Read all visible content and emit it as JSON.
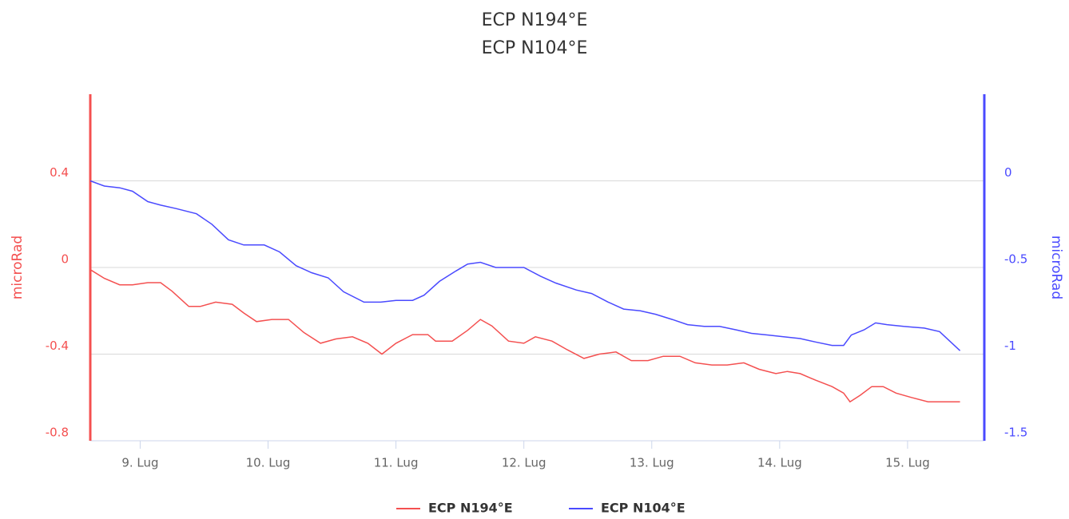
{
  "chart_data": {
    "type": "line",
    "title": "ECP N194°E",
    "subtitle": "ECP N104°E",
    "ylabel": "microRad",
    "y2label": "microRad",
    "xlim": [
      8.61,
      15.6
    ],
    "xticks": [
      {
        "value": 9,
        "label": "9. Lug"
      },
      {
        "value": 10,
        "label": "10. Lug"
      },
      {
        "value": 11,
        "label": "11. Lug"
      },
      {
        "value": 12,
        "label": "12. Lug"
      },
      {
        "value": 13,
        "label": "13. Lug"
      },
      {
        "value": 14,
        "label": "14. Lug"
      },
      {
        "value": 15,
        "label": "15. Lug"
      }
    ],
    "ylim": [
      -0.8,
      0.8
    ],
    "yticks": [
      -0.8,
      -0.4,
      0,
      0.4
    ],
    "y2lim": [
      -1.5,
      0.5
    ],
    "y2ticks": [
      -1.5,
      -1,
      -0.5,
      0
    ],
    "grid": true,
    "legend": "bottom",
    "series": [
      {
        "name": "ECP N194°E",
        "color": "#f45050",
        "axis": "y",
        "x": [
          8.61,
          8.72,
          8.84,
          8.94,
          9.06,
          9.16,
          9.25,
          9.38,
          9.47,
          9.59,
          9.72,
          9.81,
          9.91,
          10.03,
          10.16,
          10.28,
          10.41,
          10.53,
          10.66,
          10.78,
          10.89,
          11.0,
          11.13,
          11.25,
          11.31,
          11.44,
          11.56,
          11.66,
          11.75,
          11.88,
          12.0,
          12.09,
          12.22,
          12.34,
          12.47,
          12.59,
          12.72,
          12.84,
          12.97,
          13.09,
          13.22,
          13.34,
          13.47,
          13.59,
          13.72,
          13.84,
          13.97,
          14.06,
          14.16,
          14.28,
          14.41,
          14.5,
          14.55,
          14.63,
          14.72,
          14.81,
          14.91,
          15.03,
          15.16,
          15.28,
          15.41
        ],
        "values": [
          -0.01,
          -0.05,
          -0.08,
          -0.08,
          -0.07,
          -0.07,
          -0.11,
          -0.18,
          -0.18,
          -0.16,
          -0.17,
          -0.21,
          -0.25,
          -0.24,
          -0.24,
          -0.3,
          -0.35,
          -0.33,
          -0.32,
          -0.35,
          -0.4,
          -0.35,
          -0.31,
          -0.31,
          -0.34,
          -0.34,
          -0.29,
          -0.24,
          -0.27,
          -0.34,
          -0.35,
          -0.32,
          -0.34,
          -0.38,
          -0.42,
          -0.4,
          -0.39,
          -0.43,
          -0.43,
          -0.41,
          -0.41,
          -0.44,
          -0.45,
          -0.45,
          -0.44,
          -0.47,
          -0.49,
          -0.48,
          -0.49,
          -0.52,
          -0.55,
          -0.58,
          -0.62,
          -0.59,
          -0.55,
          -0.55,
          -0.58,
          -0.6,
          -0.62,
          -0.62,
          -0.62
        ]
      },
      {
        "name": "ECP N104°E",
        "color": "#4a4aff",
        "axis": "y2",
        "x": [
          8.61,
          8.72,
          8.84,
          8.94,
          9.06,
          9.16,
          9.28,
          9.44,
          9.56,
          9.69,
          9.81,
          9.97,
          10.09,
          10.22,
          10.34,
          10.47,
          10.59,
          10.75,
          10.88,
          11.0,
          11.13,
          11.22,
          11.34,
          11.47,
          11.56,
          11.66,
          11.78,
          11.91,
          12.0,
          12.13,
          12.25,
          12.41,
          12.53,
          12.66,
          12.78,
          12.91,
          13.03,
          13.16,
          13.28,
          13.41,
          13.53,
          13.66,
          13.78,
          13.91,
          14.03,
          14.16,
          14.28,
          14.41,
          14.5,
          14.56,
          14.66,
          14.75,
          14.84,
          14.97,
          15.13,
          15.25,
          15.41
        ],
        "values": [
          0,
          -0.03,
          -0.04,
          -0.06,
          -0.12,
          -0.14,
          -0.16,
          -0.19,
          -0.25,
          -0.34,
          -0.37,
          -0.37,
          -0.41,
          -0.49,
          -0.53,
          -0.56,
          -0.64,
          -0.7,
          -0.7,
          -0.69,
          -0.69,
          -0.66,
          -0.58,
          -0.52,
          -0.48,
          -0.47,
          -0.5,
          -0.5,
          -0.5,
          -0.55,
          -0.59,
          -0.63,
          -0.65,
          -0.7,
          -0.74,
          -0.75,
          -0.77,
          -0.8,
          -0.83,
          -0.84,
          -0.84,
          -0.86,
          -0.88,
          -0.89,
          -0.9,
          -0.91,
          -0.93,
          -0.95,
          -0.95,
          -0.89,
          -0.86,
          -0.82,
          -0.83,
          -0.84,
          -0.85,
          -0.87,
          -0.98
        ]
      }
    ]
  }
}
